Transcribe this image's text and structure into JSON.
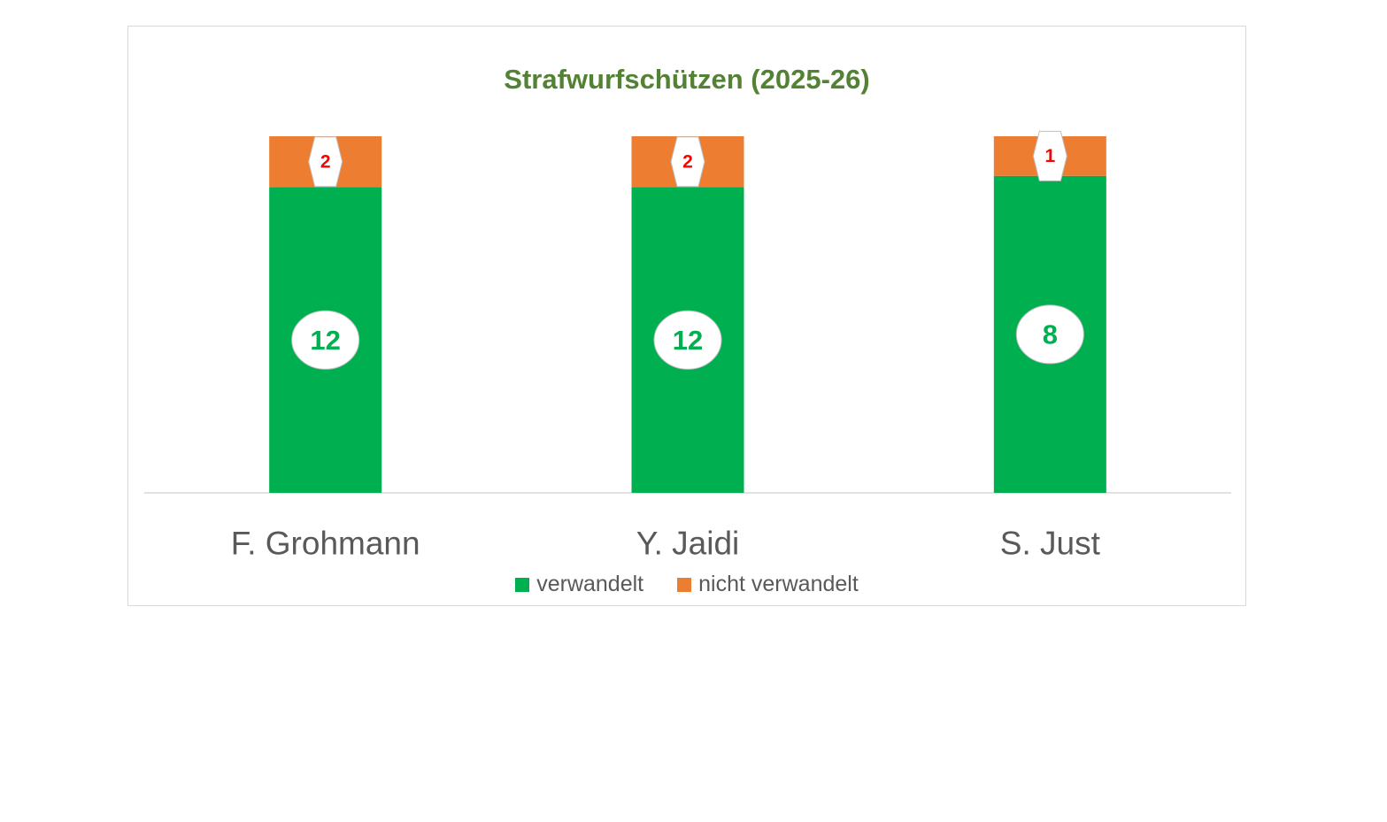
{
  "chart_data": {
    "type": "bar",
    "stacked": true,
    "normalized_100_percent": true,
    "title": "Strafwurfschützen (2025-26)",
    "categories": [
      "F. Grohmann",
      "Y. Jaidi",
      "S. Just"
    ],
    "series": [
      {
        "name": "verwandelt",
        "values": [
          12,
          12,
          8
        ],
        "color": "#00b050",
        "label_color": "#00b050",
        "label_shape": "ellipse"
      },
      {
        "name": "nicht verwandelt",
        "values": [
          2,
          2,
          1
        ],
        "color": "#ed7d31",
        "label_color": "#ff0000",
        "label_shape": "hexagon"
      }
    ],
    "legend_position": "bottom",
    "grid": false,
    "axis_line_color": "#d9d9d9",
    "title_color": "#548235",
    "category_label_color": "#595959"
  }
}
